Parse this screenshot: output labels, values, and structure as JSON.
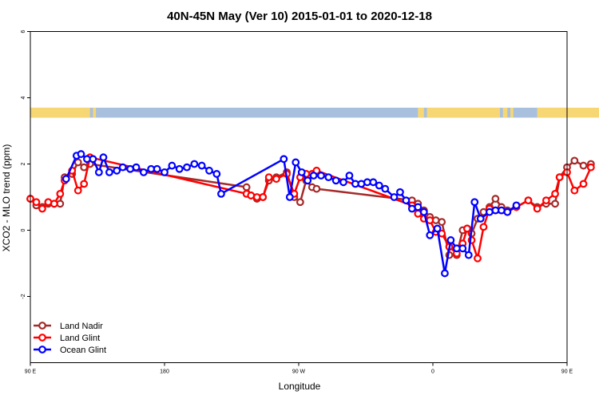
{
  "chart_data": {
    "type": "line",
    "title": "40N-45N May (Ver 10)   2015-01-01 to 2020-12-18",
    "xlabel": "Longitude",
    "ylabel": "XCO2 - MLO trend (ppm)",
    "xlim": [
      90,
      450
    ],
    "ylim": [
      -4,
      6
    ],
    "x_ticks": [
      {
        "value": 90,
        "label": "90 E"
      },
      {
        "value": 180,
        "label": "180"
      },
      {
        "value": 270,
        "label": "90 W"
      },
      {
        "value": 360,
        "label": "0"
      },
      {
        "value": 450,
        "label": "90 E"
      },
      {
        "value": 540,
        "label": "180"
      }
    ],
    "y_ticks": [
      {
        "value": -2,
        "label": "-2"
      },
      {
        "value": 0,
        "label": "0"
      },
      {
        "value": 2,
        "label": "2"
      },
      {
        "value": 4,
        "label": "4"
      },
      {
        "value": 6,
        "label": "6"
      }
    ],
    "landmask": {
      "y_range": [
        3.4,
        3.7
      ],
      "land_color": "#f7d774",
      "ocean_color": "#a8bfdd",
      "land_segments": [
        [
          90,
          128
        ],
        [
          128,
          130
        ],
        [
          132,
          134
        ],
        [
          350,
          354
        ],
        [
          356,
          405
        ],
        [
          407,
          410
        ],
        [
          412,
          414
        ],
        [
          430,
          480
        ],
        [
          482,
          485
        ],
        [
          487,
          489
        ]
      ]
    },
    "legend": {
      "position": "bottom-left"
    },
    "series": [
      {
        "name": "Land Nadir",
        "color": "#a52a2a",
        "points": [
          [
            90,
            0.95
          ],
          [
            94,
            0.75
          ],
          [
            98,
            0.7
          ],
          [
            102,
            0.8
          ],
          [
            106,
            0.8
          ],
          [
            110,
            0.8
          ],
          [
            113,
            1.6
          ],
          [
            118,
            1.7
          ],
          [
            122,
            2.05
          ],
          [
            126,
            1.9
          ],
          [
            130,
            2.0
          ],
          [
            235,
            1.3
          ],
          [
            238,
            1.05
          ],
          [
            242,
            0.95
          ],
          [
            246,
            1.0
          ],
          [
            250,
            1.5
          ],
          [
            255,
            1.6
          ],
          [
            262,
            1.75
          ],
          [
            267,
            1.0
          ],
          [
            271,
            0.85
          ],
          [
            275,
            1.5
          ],
          [
            279,
            1.3
          ],
          [
            282,
            1.25
          ],
          [
            346,
            0.9
          ],
          [
            350,
            0.8
          ],
          [
            354,
            0.6
          ],
          [
            358,
            0.4
          ],
          [
            362,
            0.3
          ],
          [
            366,
            0.25
          ],
          [
            371,
            -0.75
          ],
          [
            376,
            -0.75
          ],
          [
            380,
            0.0
          ],
          [
            383,
            0.05
          ],
          [
            386,
            -0.1
          ],
          [
            390,
            0.35
          ],
          [
            394,
            0.55
          ],
          [
            398,
            0.7
          ],
          [
            402,
            0.95
          ],
          [
            406,
            0.7
          ],
          [
            410,
            0.6
          ],
          [
            416,
            0.7
          ],
          [
            424,
            0.9
          ],
          [
            430,
            0.7
          ],
          [
            436,
            0.8
          ],
          [
            442,
            0.8
          ],
          [
            445,
            1.6
          ],
          [
            450,
            1.9
          ],
          [
            455,
            2.1
          ],
          [
            461,
            1.95
          ],
          [
            466,
            2.0
          ]
        ]
      },
      {
        "name": "Land Glint",
        "color": "#ff0000",
        "points": [
          [
            90,
            0.95
          ],
          [
            94,
            0.85
          ],
          [
            98,
            0.65
          ],
          [
            102,
            0.85
          ],
          [
            106,
            0.8
          ],
          [
            110,
            1.1
          ],
          [
            113,
            1.5
          ],
          [
            118,
            1.8
          ],
          [
            122,
            1.2
          ],
          [
            126,
            1.4
          ],
          [
            130,
            2.2
          ],
          [
            235,
            1.1
          ],
          [
            238,
            1.05
          ],
          [
            242,
            1.0
          ],
          [
            246,
            1.0
          ],
          [
            250,
            1.6
          ],
          [
            255,
            1.55
          ],
          [
            262,
            1.7
          ],
          [
            267,
            1.1
          ],
          [
            271,
            1.6
          ],
          [
            275,
            1.7
          ],
          [
            279,
            1.7
          ],
          [
            282,
            1.8
          ],
          [
            346,
            0.75
          ],
          [
            350,
            0.5
          ],
          [
            354,
            0.35
          ],
          [
            358,
            0.3
          ],
          [
            362,
            -0.05
          ],
          [
            366,
            -0.1
          ],
          [
            371,
            -0.5
          ],
          [
            376,
            -0.7
          ],
          [
            380,
            -0.4
          ],
          [
            383,
            0.05
          ],
          [
            386,
            -0.3
          ],
          [
            390,
            -0.85
          ],
          [
            394,
            0.1
          ],
          [
            398,
            0.65
          ],
          [
            402,
            0.6
          ],
          [
            406,
            0.6
          ],
          [
            410,
            0.55
          ],
          [
            416,
            0.7
          ],
          [
            424,
            0.9
          ],
          [
            430,
            0.65
          ],
          [
            436,
            0.9
          ],
          [
            442,
            1.1
          ],
          [
            445,
            1.6
          ],
          [
            450,
            1.75
          ],
          [
            455,
            1.2
          ],
          [
            461,
            1.4
          ],
          [
            466,
            1.9
          ]
        ]
      },
      {
        "name": "Ocean Glint",
        "color": "#0000ff",
        "points": [
          [
            114,
            1.55
          ],
          [
            121,
            2.25
          ],
          [
            124,
            2.3
          ],
          [
            128,
            2.15
          ],
          [
            132,
            2.15
          ],
          [
            136,
            1.75
          ],
          [
            139,
            2.2
          ],
          [
            143,
            1.75
          ],
          [
            148,
            1.8
          ],
          [
            152,
            1.9
          ],
          [
            157,
            1.85
          ],
          [
            161,
            1.9
          ],
          [
            166,
            1.75
          ],
          [
            171,
            1.85
          ],
          [
            175,
            1.85
          ],
          [
            180,
            1.75
          ],
          [
            185,
            1.95
          ],
          [
            190,
            1.85
          ],
          [
            195,
            1.9
          ],
          [
            200,
            2.0
          ],
          [
            205,
            1.95
          ],
          [
            210,
            1.8
          ],
          [
            215,
            1.7
          ],
          [
            218,
            1.1
          ],
          [
            260,
            2.15
          ],
          [
            264,
            1.0
          ],
          [
            268,
            2.05
          ],
          [
            272,
            1.75
          ],
          [
            276,
            1.5
          ],
          [
            280,
            1.65
          ],
          [
            285,
            1.65
          ],
          [
            290,
            1.6
          ],
          [
            295,
            1.5
          ],
          [
            300,
            1.45
          ],
          [
            304,
            1.65
          ],
          [
            308,
            1.4
          ],
          [
            312,
            1.4
          ],
          [
            316,
            1.45
          ],
          [
            320,
            1.45
          ],
          [
            324,
            1.35
          ],
          [
            328,
            1.25
          ],
          [
            334,
            1.0
          ],
          [
            338,
            1.15
          ],
          [
            342,
            0.9
          ],
          [
            346,
            0.65
          ],
          [
            350,
            0.7
          ],
          [
            354,
            0.55
          ],
          [
            358,
            -0.15
          ],
          [
            363,
            0.05
          ],
          [
            368,
            -1.3
          ],
          [
            372,
            -0.3
          ],
          [
            376,
            -0.55
          ],
          [
            380,
            -0.55
          ],
          [
            384,
            -0.75
          ],
          [
            388,
            0.85
          ],
          [
            392,
            0.35
          ],
          [
            398,
            0.55
          ],
          [
            402,
            0.6
          ],
          [
            406,
            0.6
          ],
          [
            410,
            0.55
          ],
          [
            416,
            0.75
          ]
        ]
      }
    ]
  }
}
